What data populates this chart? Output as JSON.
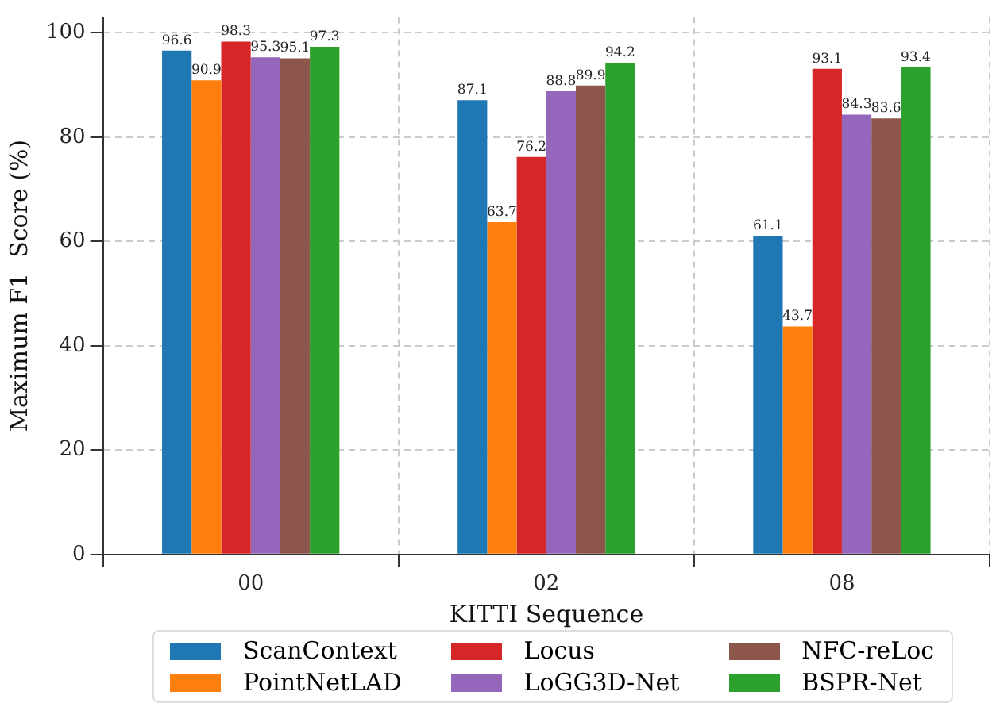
{
  "chart_data": {
    "type": "bar",
    "xlabel": "KITTI Sequence",
    "ylabel": "Maximum F1  Score (%)",
    "categories": [
      "00",
      "02",
      "08"
    ],
    "series": [
      {
        "name": "ScanContext",
        "color": "#1f77b4",
        "values": [
          96.6,
          87.1,
          61.1
        ]
      },
      {
        "name": "PointNetLAD",
        "color": "#ff7f0e",
        "values": [
          90.9,
          63.7,
          43.7
        ]
      },
      {
        "name": "Locus",
        "color": "#d62728",
        "values": [
          98.3,
          76.2,
          93.1
        ]
      },
      {
        "name": "LoGG3D-Net",
        "color": "#9467bd",
        "values": [
          95.3,
          88.8,
          84.3
        ]
      },
      {
        "name": "NFC-reLoc",
        "color": "#8c564b",
        "values": [
          95.1,
          89.9,
          83.6
        ]
      },
      {
        "name": "BSPR-Net",
        "color": "#2ca02c",
        "values": [
          97.3,
          94.2,
          93.4
        ]
      }
    ],
    "ylim": [
      0,
      103
    ],
    "yticks": [
      0,
      20,
      40,
      60,
      80,
      100
    ],
    "grid": true,
    "legend": "bottom",
    "data_labels": true
  }
}
